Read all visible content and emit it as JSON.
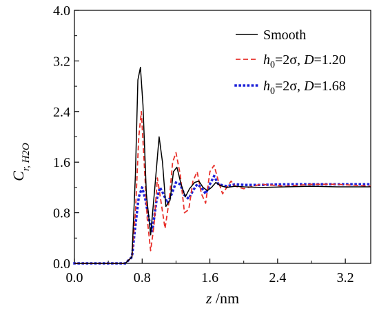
{
  "chart_data": {
    "type": "line",
    "xlabel": {
      "var": "z",
      "unit": " /nm"
    },
    "ylabel": {
      "var": "C",
      "sub": "r, H2O"
    },
    "xlim": [
      0.0,
      3.5
    ],
    "ylim": [
      0.0,
      4.0
    ],
    "x_ticks": [
      0.0,
      0.8,
      1.6,
      2.4,
      3.2
    ],
    "x_tick_labels": [
      "0.0",
      "0.8",
      "1.6",
      "2.4",
      "3.2"
    ],
    "y_ticks": [
      0.0,
      0.8,
      1.6,
      2.4,
      3.2,
      4.0
    ],
    "y_tick_labels": [
      "0.0",
      "0.8",
      "1.6",
      "2.4",
      "3.2",
      "4.0"
    ],
    "grid": false,
    "legend_position": "top-right",
    "series": [
      {
        "name": "Smooth",
        "legend": {
          "plain": "Smooth"
        },
        "color": "#000000",
        "style": "solid",
        "x": [
          0.0,
          0.6,
          0.68,
          0.72,
          0.75,
          0.78,
          0.81,
          0.85,
          0.9,
          0.95,
          1.0,
          1.04,
          1.08,
          1.13,
          1.17,
          1.21,
          1.26,
          1.31,
          1.36,
          1.42,
          1.47,
          1.52,
          1.57,
          1.62,
          1.67,
          1.72,
          1.8,
          1.9,
          2.0,
          2.2,
          2.5,
          2.8,
          3.1,
          3.5
        ],
        "y": [
          0.0,
          0.0,
          0.1,
          1.4,
          2.9,
          3.1,
          2.5,
          1.1,
          0.45,
          1.2,
          2.0,
          1.6,
          0.9,
          1.0,
          1.45,
          1.52,
          1.25,
          1.05,
          1.18,
          1.28,
          1.3,
          1.2,
          1.15,
          1.2,
          1.28,
          1.23,
          1.2,
          1.22,
          1.21,
          1.2,
          1.21,
          1.22,
          1.21,
          1.21
        ]
      },
      {
        "name": "h0=2σ, D=1.20",
        "legend": {
          "h": "h",
          "hsub": "0",
          "rest": "=2σ, ",
          "d": "D",
          "val": "=1.20"
        },
        "color": "#e8312b",
        "style": "dashed",
        "x": [
          0.0,
          0.6,
          0.68,
          0.72,
          0.76,
          0.79,
          0.82,
          0.86,
          0.9,
          0.94,
          0.98,
          1.02,
          1.07,
          1.12,
          1.16,
          1.2,
          1.25,
          1.3,
          1.35,
          1.4,
          1.45,
          1.5,
          1.55,
          1.6,
          1.65,
          1.7,
          1.75,
          1.8,
          1.85,
          1.9,
          2.0,
          2.2,
          2.5,
          2.8,
          3.1,
          3.5
        ],
        "y": [
          0.0,
          0.0,
          0.1,
          0.8,
          2.0,
          2.4,
          1.7,
          0.7,
          0.2,
          0.6,
          1.35,
          1.0,
          0.55,
          1.0,
          1.6,
          1.75,
          1.4,
          0.8,
          0.85,
          1.3,
          1.45,
          1.1,
          0.95,
          1.45,
          1.55,
          1.3,
          1.1,
          1.2,
          1.3,
          1.22,
          1.18,
          1.25,
          1.22,
          1.25,
          1.25,
          1.22
        ]
      },
      {
        "name": "h0=2σ, D=1.68",
        "legend": {
          "h": "h",
          "hsub": "0",
          "rest": "=2σ, ",
          "d": "D",
          "val": "=1.68"
        },
        "color": "#1e22d8",
        "style": "dotted",
        "x": [
          0.0,
          0.6,
          0.68,
          0.72,
          0.76,
          0.8,
          0.84,
          0.88,
          0.92,
          0.97,
          1.01,
          1.05,
          1.1,
          1.15,
          1.2,
          1.25,
          1.3,
          1.35,
          1.4,
          1.45,
          1.5,
          1.55,
          1.6,
          1.65,
          1.7,
          1.8,
          1.9,
          2.0,
          2.2,
          2.5,
          2.8,
          3.1,
          3.5
        ],
        "y": [
          0.0,
          0.0,
          0.1,
          0.6,
          1.05,
          1.2,
          1.0,
          0.7,
          0.5,
          1.0,
          1.2,
          1.1,
          0.95,
          1.1,
          1.28,
          1.25,
          1.08,
          1.02,
          1.15,
          1.25,
          1.2,
          1.1,
          1.25,
          1.38,
          1.25,
          1.22,
          1.25,
          1.24,
          1.24,
          1.25,
          1.25,
          1.25,
          1.25
        ]
      }
    ]
  }
}
